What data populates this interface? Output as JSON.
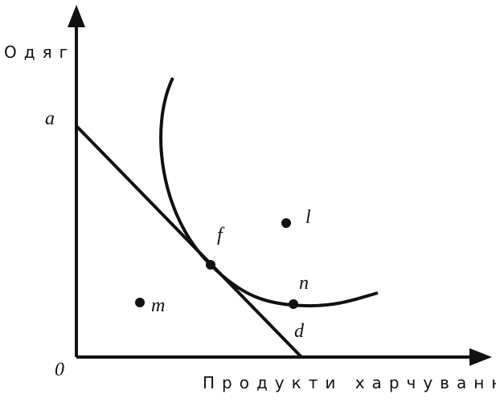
{
  "axes": {
    "y_label": "Одяг",
    "x_label": "Продукти харчування",
    "origin": "0"
  },
  "points": {
    "a": "a",
    "d": "d",
    "f": "f",
    "l": "l",
    "n": "n",
    "m": "m"
  }
}
